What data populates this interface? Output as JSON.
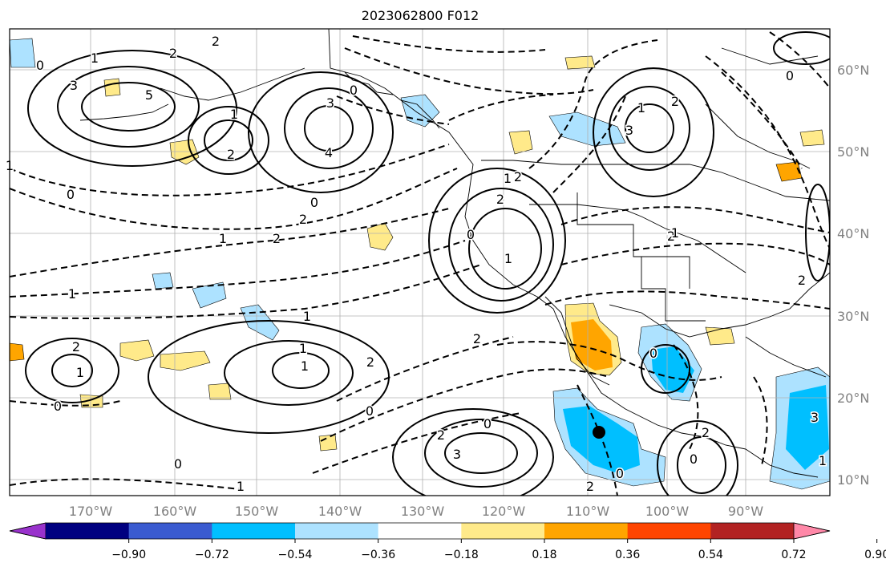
{
  "title": "2023062800 F012",
  "lon_labels": [
    "170°W",
    "160°W",
    "150°W",
    "140°W",
    "130°W",
    "120°W",
    "110°W",
    "100°W",
    "90°W"
  ],
  "lat_labels": [
    "60°N",
    "50°N",
    "40°N",
    "30°N",
    "20°N",
    "10°N"
  ],
  "colorbar": {
    "colors": [
      "#9932cc",
      "#000080",
      "#3a5bd0",
      "#00bfff",
      "#ade2ff",
      "#ffffff",
      "#ffea8a",
      "#ffa500",
      "#ff4500",
      "#b22222",
      "#ff88a8"
    ],
    "tick_labels": [
      "−0.90",
      "−0.72",
      "−0.54",
      "−0.36",
      "−0.18",
      "0.18",
      "0.36",
      "0.54",
      "0.72",
      "0.90"
    ]
  },
  "contour_labels": [
    "0",
    "1",
    "2",
    "3",
    "5",
    "2",
    "1",
    "3",
    "4",
    "2",
    "0",
    "0",
    "2",
    "1",
    "2",
    "2",
    "0",
    "1",
    "2",
    "3",
    "2",
    "1",
    "1",
    "2",
    "1",
    "0",
    "2",
    "1",
    "1",
    "2",
    "0",
    "2",
    "3",
    "0",
    "1",
    "2",
    "1",
    "1",
    "0",
    "0",
    "1",
    "2",
    "0",
    "0",
    "2",
    "0",
    "1",
    "2",
    "0",
    "3",
    "1"
  ],
  "marker": {
    "label": "station-marker"
  },
  "colors": {
    "land_outline": "#000000",
    "grid": "#b0b0b0",
    "tick_text": "#808080",
    "positive_light": "#ffea8a",
    "positive_mid": "#ffa500",
    "negative_light": "#ade2ff",
    "negative_mid": "#00bfff"
  }
}
